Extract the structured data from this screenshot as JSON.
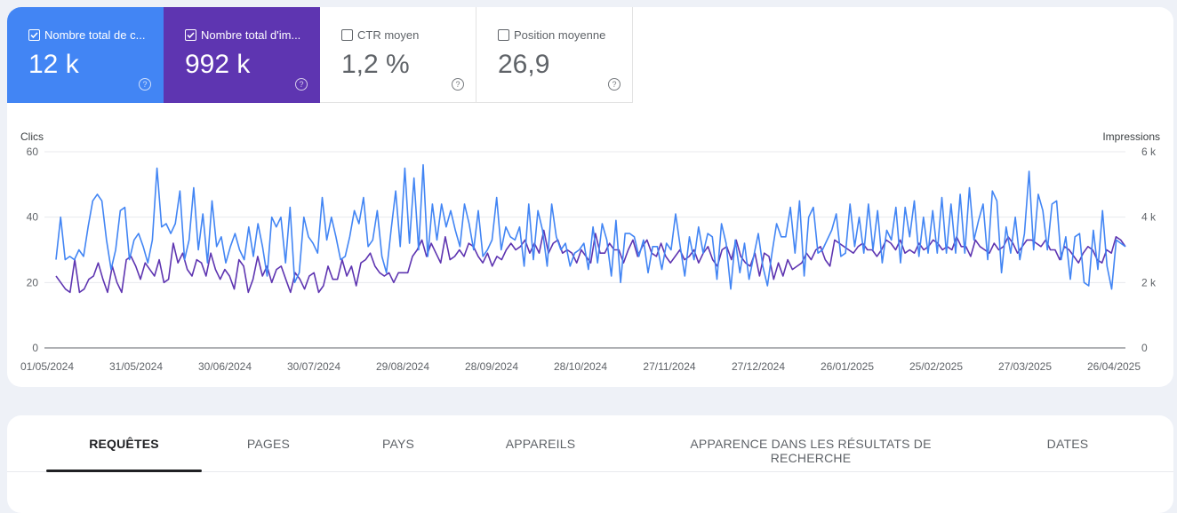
{
  "metrics": [
    {
      "key": "clicks",
      "label": "Nombre total de c...",
      "value": "12 k",
      "checked": true,
      "color": "#4285f4",
      "help_icon": "help-circle-icon"
    },
    {
      "key": "impressions",
      "label": "Nombre total d'im...",
      "value": "992 k",
      "checked": true,
      "color": "#5e35b1",
      "help_icon": "help-circle-icon"
    },
    {
      "key": "ctr",
      "label": "CTR moyen",
      "value": "1,2 %",
      "checked": false,
      "help_icon": "help-circle-icon"
    },
    {
      "key": "position",
      "label": "Position moyenne",
      "value": "26,9",
      "checked": false,
      "help_icon": "help-circle-icon"
    }
  ],
  "chart_data": {
    "type": "line",
    "xlabel": "",
    "ylabel_left": "Clics",
    "ylabel_right": "Impressions",
    "ylim_left": [
      0,
      60
    ],
    "ylim_right": [
      0,
      6000
    ],
    "yticks_left": [
      "0",
      "20",
      "40",
      "60"
    ],
    "yticks_right": [
      "0",
      "2 k",
      "4 k",
      "6 k"
    ],
    "xticks": [
      "01/05/2024",
      "31/05/2024",
      "30/06/2024",
      "30/07/2024",
      "29/08/2024",
      "28/09/2024",
      "28/10/2024",
      "27/11/2024",
      "27/12/2024",
      "26/01/2025",
      "25/02/2025",
      "27/03/2025",
      "26/04/2025"
    ],
    "grid": true,
    "series": [
      {
        "axis": "left",
        "color": "#4285f4",
        "values": [
          27,
          40,
          27,
          28,
          27,
          30,
          28,
          37,
          45,
          47,
          45,
          33,
          24,
          30,
          42,
          43,
          27,
          33,
          35,
          31,
          26,
          33,
          55,
          37,
          38,
          35,
          38,
          48,
          27,
          33,
          49,
          30,
          41,
          26,
          45,
          31,
          34,
          26,
          31,
          35,
          30,
          27,
          37,
          28,
          38,
          31,
          22,
          40,
          37,
          40,
          26,
          43,
          20,
          23,
          40,
          34,
          32,
          29,
          46,
          33,
          40,
          34,
          27,
          28,
          34,
          42,
          38,
          46,
          31,
          33,
          42,
          28,
          23,
          36,
          48,
          31,
          55,
          32,
          52,
          30,
          56,
          28,
          44,
          33,
          44,
          37,
          42,
          36,
          31,
          44,
          38,
          30,
          42,
          28,
          30,
          33,
          46,
          30,
          37,
          34,
          33,
          37,
          25,
          44,
          27,
          42,
          36,
          25,
          44,
          34,
          30,
          32,
          25,
          29,
          30,
          32,
          24,
          37,
          26,
          38,
          33,
          22,
          39,
          20,
          35,
          35,
          34,
          28,
          33,
          23,
          31,
          31,
          24,
          32,
          30,
          41,
          31,
          22,
          34,
          27,
          37,
          29,
          35,
          34,
          21,
          38,
          32,
          18,
          33,
          23,
          32,
          21,
          28,
          35,
          25,
          19,
          29,
          38,
          34,
          34,
          43,
          29,
          45,
          22,
          40,
          43,
          29,
          30,
          33,
          36,
          41,
          28,
          29,
          44,
          31,
          40,
          29,
          44,
          30,
          42,
          26,
          36,
          33,
          43,
          26,
          43,
          34,
          45,
          28,
          40,
          29,
          42,
          29,
          46,
          29,
          44,
          29,
          47,
          29,
          49,
          33,
          39,
          44,
          27,
          48,
          45,
          23,
          37,
          29,
          40,
          27,
          35,
          54,
          30,
          47,
          42,
          30,
          44,
          45,
          27,
          34,
          21,
          34,
          35,
          20,
          19,
          36,
          24,
          42,
          25,
          18,
          33,
          32,
          31
        ]
      },
      {
        "axis": "right",
        "color": "#5e35b1",
        "values": [
          2200,
          2000,
          1800,
          1700,
          2700,
          1700,
          1800,
          2100,
          2200,
          2600,
          2100,
          1700,
          2500,
          2000,
          1700,
          2700,
          2800,
          2500,
          2100,
          2600,
          2400,
          2200,
          2700,
          2000,
          2100,
          3200,
          2600,
          2900,
          2400,
          2200,
          2700,
          2600,
          2200,
          2900,
          2400,
          2100,
          2400,
          2200,
          1800,
          2700,
          2500,
          1700,
          2100,
          2800,
          2200,
          2500,
          2000,
          2400,
          2500,
          2100,
          1700,
          2300,
          2100,
          1800,
          2200,
          2300,
          1700,
          1900,
          2500,
          2100,
          2100,
          2700,
          2200,
          2500,
          1900,
          2600,
          2700,
          2900,
          2500,
          2300,
          2200,
          2300,
          2000,
          2300,
          2300,
          2300,
          2800,
          3000,
          3300,
          2800,
          3200,
          2900,
          2600,
          3400,
          2700,
          2800,
          3000,
          2800,
          3200,
          3100,
          2800,
          2600,
          2900,
          2500,
          2800,
          2700,
          3000,
          3200,
          3000,
          3100,
          3300,
          2900,
          3200,
          2900,
          3600,
          2900,
          3200,
          3300,
          2900,
          3000,
          2900,
          2600,
          3000,
          2800,
          2600,
          3500,
          2900,
          2900,
          3200,
          3000,
          3000,
          2600,
          3000,
          3300,
          2800,
          3100,
          3300,
          2900,
          2800,
          3200,
          2800,
          2600,
          2800,
          3000,
          2700,
          2800,
          3000,
          2600,
          2900,
          3100,
          2700,
          2500,
          3000,
          3100,
          2700,
          3300,
          2800,
          2600,
          2500,
          2900,
          2200,
          2900,
          2800,
          2100,
          2600,
          2200,
          2700,
          2400,
          2500,
          2600,
          2900,
          2700,
          3000,
          3100,
          2700,
          2500,
          3300,
          3200,
          3100,
          3000,
          2900,
          3100,
          3200,
          3000,
          3000,
          2800,
          3000,
          3300,
          3200,
          3000,
          3300,
          2900,
          3000,
          2900,
          3200,
          3000,
          3100,
          3300,
          3200,
          3000,
          3100,
          3000,
          3400,
          3100,
          3100,
          2800,
          3300,
          3100,
          3000,
          2900,
          3200,
          3000,
          3100,
          3400,
          3200,
          2900,
          3100,
          3300,
          3300,
          3200,
          3100,
          3300,
          3000,
          3000,
          2700,
          3100,
          3000,
          2800,
          2600,
          2900,
          3100,
          3000,
          2700,
          2600,
          3000,
          2900,
          3400,
          3300,
          3100
        ]
      }
    ]
  },
  "tabs": [
    "REQUÊTES",
    "PAGES",
    "PAYS",
    "APPAREILS",
    "APPARENCE DANS LES RÉSULTATS DE RECHERCHE",
    "DATES"
  ],
  "active_tab": 0
}
